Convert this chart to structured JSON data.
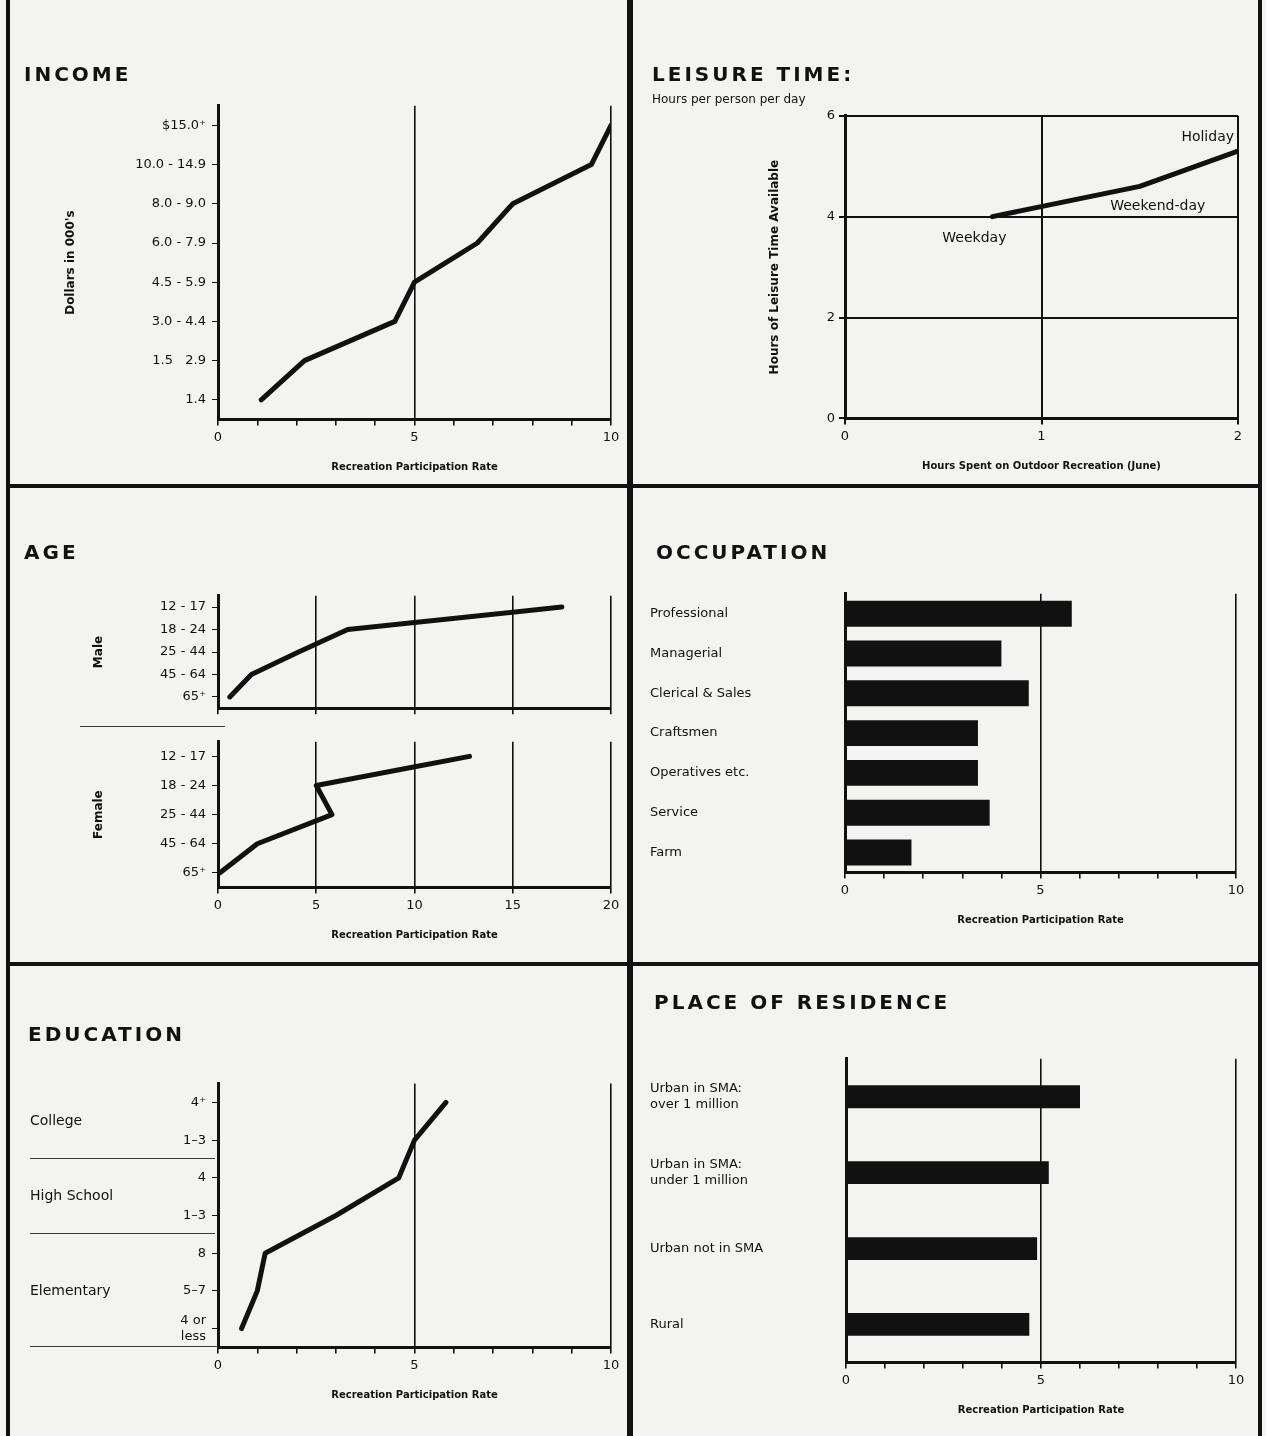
{
  "chart_data": [
    {
      "type": "line",
      "title": "INCOME",
      "orientation": "horizontal",
      "categories": [
        "$15.0⁺",
        "10.0 - 14.9",
        "8.0 - 9.0",
        "6.0 - 7.9",
        "4.5 - 5.9",
        "3.0 - 4.4",
        "1.5   2.9",
        "1.4"
      ],
      "values": [
        10,
        9.5,
        7.5,
        6.6,
        5.0,
        4.5,
        2.2,
        1.1
      ],
      "color": "#111111",
      "xlim": [
        0,
        10
      ],
      "xticks": [
        0,
        {
          "value": 1,
          "label": null
        },
        {
          "value": 2,
          "label": null
        },
        {
          "value": 3,
          "label": null
        },
        {
          "value": 4,
          "label": null
        },
        5,
        {
          "value": 6,
          "label": null
        },
        {
          "value": 7,
          "label": null
        },
        {
          "value": 8,
          "label": null
        },
        {
          "value": 9,
          "label": null
        },
        10
      ],
      "xlabel": "Recreation Participation Rate",
      "ylabel": "Dollars in 000's",
      "grid": "x"
    },
    {
      "type": "line",
      "title": "LEISURE TIME:",
      "subtitle": "Hours per person per day",
      "x": [
        0.75,
        1.5,
        2.0
      ],
      "values": [
        4.0,
        4.6,
        5.3
      ],
      "color": "#111111",
      "xlim": [
        0,
        2
      ],
      "xticks": [
        0,
        1,
        2
      ],
      "ylim": [
        0,
        6
      ],
      "yticks": [
        0,
        2,
        4,
        6
      ],
      "xlabel": "Hours Spent on Outdoor Recreation (June)",
      "ylabel": "Hours of Leisure Time Available",
      "grid": true,
      "annotations": [
        {
          "text": "Weekday",
          "x": 0.75,
          "y": 4.0
        },
        {
          "text": "Weekend-day",
          "x": 1.5,
          "y": 4.6
        },
        {
          "text": "Holiday",
          "x": 2.0,
          "y": 5.3
        }
      ]
    },
    {
      "type": "line",
      "title": "AGE",
      "orientation": "horizontal",
      "categories": [
        "12 - 17",
        "18 - 24",
        "25 - 44",
        "45 - 64",
        "65⁺"
      ],
      "values": [
        17.5,
        6.6,
        4.1,
        1.7,
        0.6
      ],
      "color": "#111111",
      "xlim": [
        0,
        20
      ],
      "xticks": [
        0,
        5,
        10,
        15,
        20
      ],
      "ylabel": "Male",
      "grid": "x",
      "tick_labels": "y"
    },
    {
      "type": "line",
      "orientation": "horizontal",
      "categories": [
        "12 - 17",
        "18 - 24",
        "25 - 44",
        "45 - 64",
        "65⁺"
      ],
      "values": [
        12.8,
        5.0,
        5.8,
        2.0,
        0.1
      ],
      "color": "#111111",
      "xlim": [
        0,
        20
      ],
      "xticks": [
        0,
        5,
        10,
        15,
        20
      ],
      "xlabel": "Recreation Participation Rate",
      "ylabel": "Female",
      "grid": "x"
    },
    {
      "type": "bar",
      "title": "OCCUPATION",
      "orientation": "horizontal",
      "categories": [
        "Professional",
        "Managerial",
        "Clerical & Sales",
        "Craftsmen",
        "Operatives etc.",
        "Service",
        "Farm"
      ],
      "values": [
        5.8,
        4.0,
        4.7,
        3.4,
        3.4,
        3.7,
        1.7
      ],
      "color": "#111111",
      "xlim": [
        0,
        10
      ],
      "xticks": [
        0,
        {
          "value": 1,
          "label": null
        },
        {
          "value": 2,
          "label": null
        },
        {
          "value": 3,
          "label": null
        },
        {
          "value": 4,
          "label": null
        },
        5,
        {
          "value": 6,
          "label": null
        },
        {
          "value": 7,
          "label": null
        },
        {
          "value": 8,
          "label": null
        },
        {
          "value": 9,
          "label": null
        },
        10
      ],
      "xlabel": "Recreation Participation Rate",
      "grid": "x"
    },
    {
      "type": "line",
      "title": "EDUCATION",
      "orientation": "horizontal",
      "categories": [
        "4⁺",
        "1–3",
        "4",
        "1–3",
        "8",
        "5–7",
        "4 or less"
      ],
      "values": [
        5.8,
        5.0,
        4.6,
        3.0,
        1.2,
        1.0,
        0.6
      ],
      "color": "#111111",
      "xlim": [
        0,
        10
      ],
      "xticks": [
        0,
        {
          "value": 1,
          "label": null
        },
        {
          "value": 2,
          "label": null
        },
        {
          "value": 3,
          "label": null
        },
        {
          "value": 4,
          "label": null
        },
        5,
        {
          "value": 6,
          "label": null
        },
        {
          "value": 7,
          "label": null
        },
        {
          "value": 8,
          "label": null
        },
        {
          "value": 9,
          "label": null
        },
        10
      ],
      "xlabel": "Recreation Participation Rate",
      "grid": "x",
      "annotations": [
        "College",
        "High School",
        "Elementary"
      ]
    },
    {
      "type": "bar",
      "title": "PLACE OF RESIDENCE",
      "orientation": "horizontal",
      "categories": [
        "Urban in SMA: over 1 million",
        "Urban in SMA: under 1 million",
        "Urban not in SMA",
        "Rural"
      ],
      "values": [
        6.0,
        5.2,
        4.9,
        4.7
      ],
      "color": "#111111",
      "xlim": [
        0,
        10
      ],
      "xticks": [
        0,
        {
          "value": 1,
          "label": null
        },
        {
          "value": 2,
          "label": null
        },
        {
          "value": 3,
          "label": null
        },
        {
          "value": 4,
          "label": null
        },
        5,
        {
          "value": 6,
          "label": null
        },
        {
          "value": 7,
          "label": null
        },
        {
          "value": 8,
          "label": null
        },
        {
          "value": 9,
          "label": null
        },
        10
      ],
      "xlabel": "Recreation Participation Rate",
      "grid": "x"
    }
  ]
}
